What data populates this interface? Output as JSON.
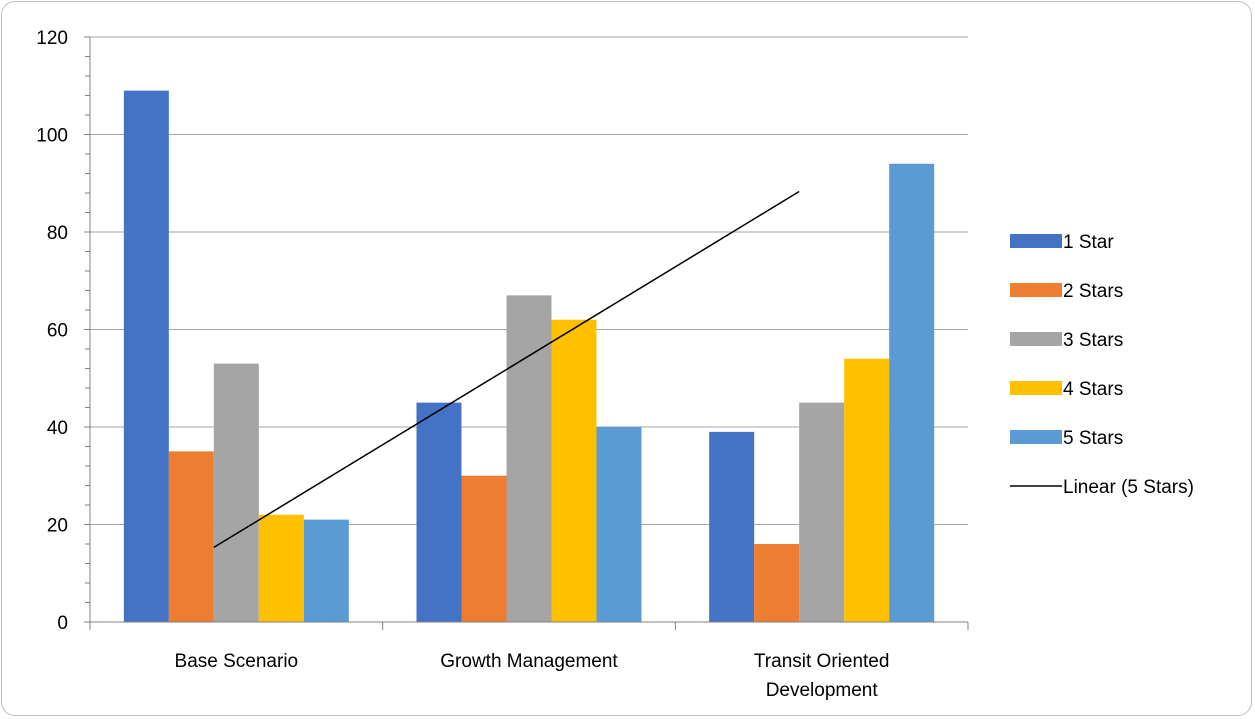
{
  "chart_data": {
    "type": "bar",
    "title": "",
    "xlabel": "",
    "ylabel": "",
    "ylim": [
      0,
      120
    ],
    "y_major_step": 20,
    "y_minor_step": 4,
    "grid": "horizontal-major",
    "legend_position": "right",
    "categories": [
      [
        "Base Scenario"
      ],
      [
        "Growth Management"
      ],
      [
        "Transit Oriented",
        "Development"
      ]
    ],
    "series": [
      {
        "name": "1 Star",
        "color": "#4472C4",
        "values": [
          109,
          45,
          39
        ]
      },
      {
        "name": "2 Stars",
        "color": "#ED7D31",
        "values": [
          35,
          30,
          16
        ]
      },
      {
        "name": "3 Stars",
        "color": "#A5A5A5",
        "values": [
          53,
          67,
          45
        ]
      },
      {
        "name": "4 Stars",
        "color": "#FFC000",
        "values": [
          22,
          62,
          54
        ]
      },
      {
        "name": "5 Stars",
        "color": "#5B9BD5",
        "values": [
          21,
          40,
          94
        ]
      }
    ],
    "trendline": {
      "name": "Linear (5 Stars)",
      "series": "5 Stars",
      "type": "linear",
      "color": "#000000",
      "values": [
        15.3,
        51.8,
        88.3
      ]
    }
  }
}
